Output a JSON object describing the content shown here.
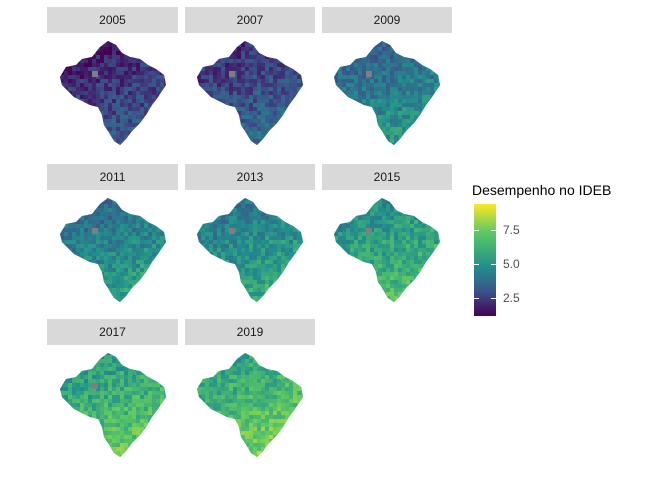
{
  "facets": [
    {
      "label": "2005",
      "level": 0.18
    },
    {
      "label": "2007",
      "level": 0.24
    },
    {
      "label": "2009",
      "level": 0.42
    },
    {
      "label": "2011",
      "level": 0.46
    },
    {
      "label": "2013",
      "level": 0.5
    },
    {
      "label": "2015",
      "level": 0.58
    },
    {
      "label": "2017",
      "level": 0.64
    },
    {
      "label": "2019",
      "level": 0.68
    }
  ],
  "legend": {
    "title": "Desempenho no IDEB",
    "ticks": [
      "7.5",
      "5.0",
      "2.5"
    ],
    "tick_values": [
      7.5,
      5.0,
      2.5
    ],
    "min": 1.0,
    "max": 9.2
  },
  "colors": {
    "viridis": [
      "#440154",
      "#3b528b",
      "#21918c",
      "#5ec962",
      "#fde725"
    ],
    "strip_bg": "#d9d9d9",
    "missing": "#7f7f7f"
  }
}
